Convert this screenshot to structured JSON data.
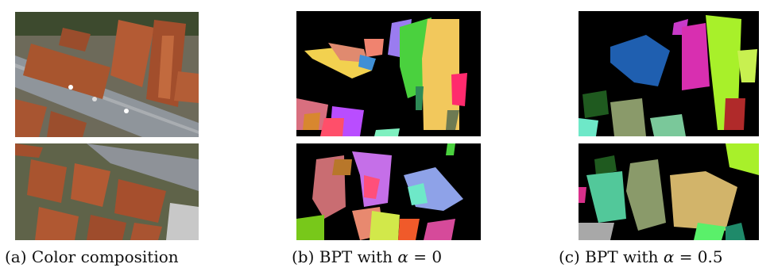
{
  "figure": {
    "subfigures": [
      {
        "id": "a",
        "caption": "(a) Color composition"
      },
      {
        "id": "b",
        "caption": "(b) BPT with α = 0",
        "caption_prefix": "(b) BPT with ",
        "alpha_symbol": "α",
        "alpha_value": "= 0"
      },
      {
        "id": "c",
        "caption": "(c) BPT with α = 0.5",
        "caption_prefix": "(c) BPT with ",
        "alpha_symbol": "α",
        "alpha_value": "= 0.5"
      }
    ]
  },
  "colors": {
    "background_segmentation": "#000000",
    "roof_orange": "#b5552f",
    "road_gray": "#8c8c8c",
    "vegetation": "#4a6a3a"
  }
}
